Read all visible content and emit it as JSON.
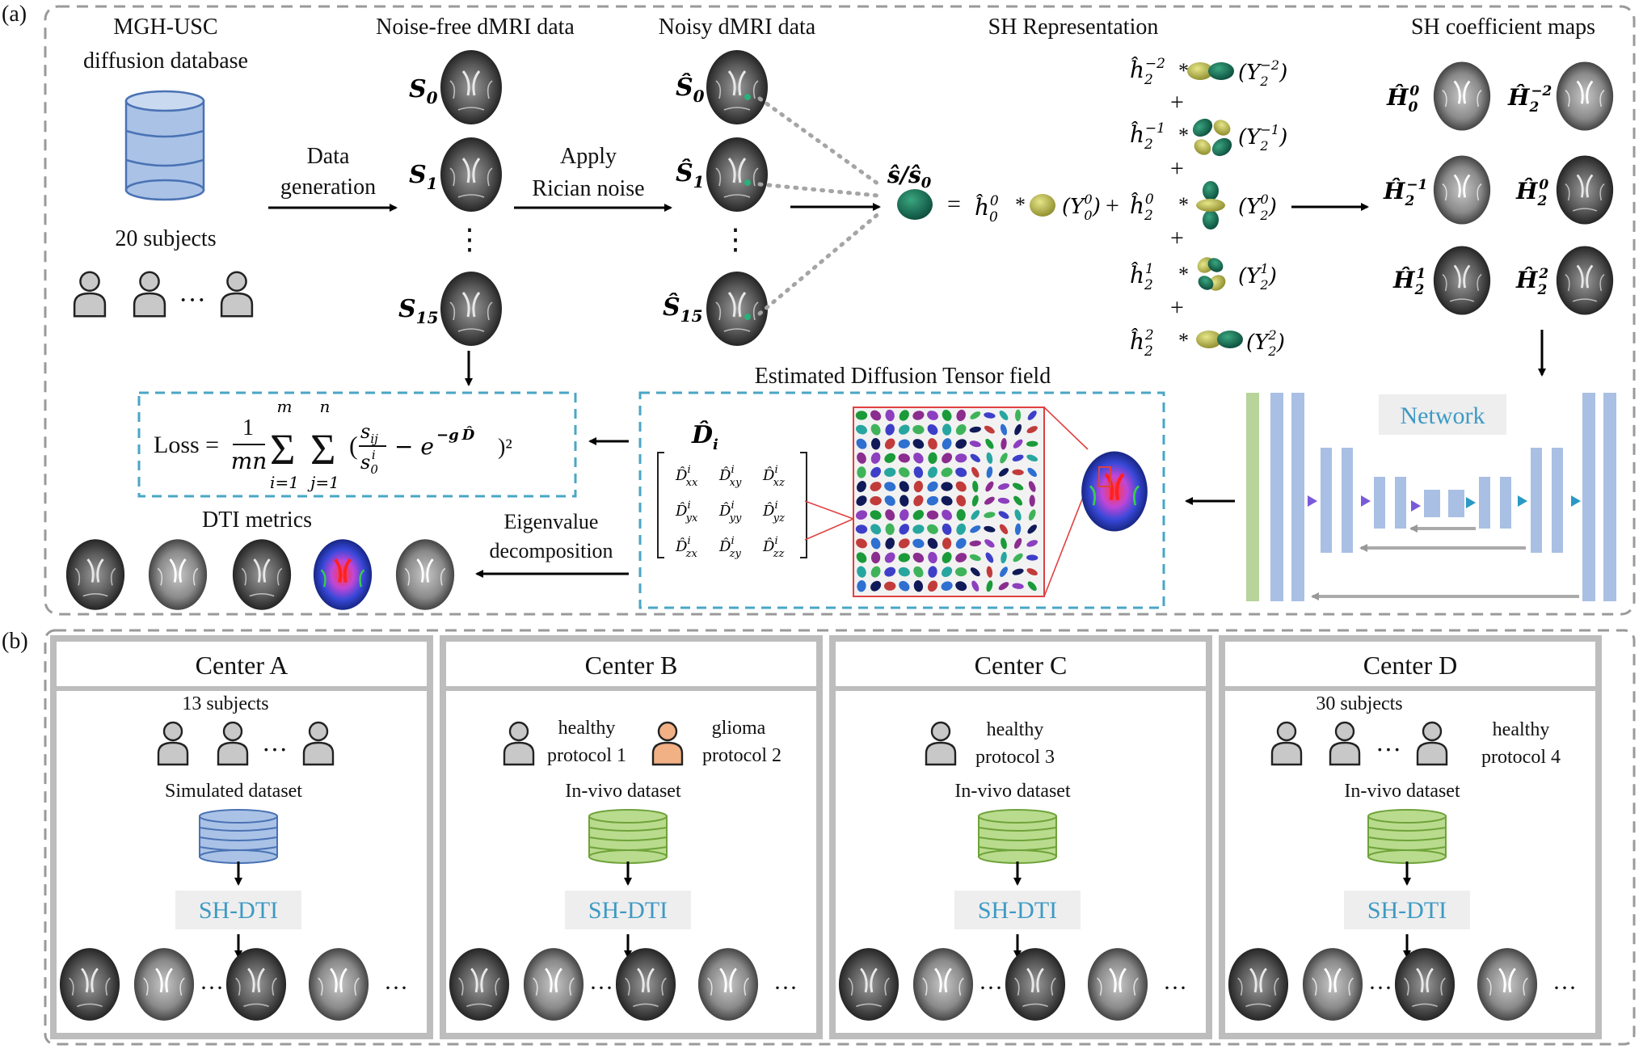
{
  "panel_a": {
    "label": "(a)",
    "database": {
      "title_line1": "MGH-USC",
      "title_line2": "diffusion database",
      "subjects": "20 subjects",
      "dots": "···"
    },
    "data_generation": {
      "line1": "Data",
      "line2": "generation"
    },
    "noise_free": {
      "title": "Noise-free dMRI data",
      "labels": [
        "S",
        "S",
        "S"
      ],
      "subs": [
        "0",
        "1",
        "15"
      ],
      "dots": "⋮"
    },
    "rician": {
      "line1": "Apply",
      "line2": "Rician noise"
    },
    "noisy": {
      "title": "Noisy dMRI data",
      "labels": [
        "Ŝ",
        "Ŝ",
        "Ŝ"
      ],
      "subs": [
        "0",
        "1",
        "15"
      ],
      "dots": "⋮"
    },
    "sh_rep": {
      "title": "SH Representation",
      "signal": "ŝ/ŝ",
      "signal_sub": "0",
      "equals": "=",
      "terms": [
        {
          "coef": "ĥ",
          "sub": "2",
          "sup": "−2",
          "basis": "(Y",
          "bsub": "2",
          "bsup": "−2",
          "close": ")"
        },
        {
          "coef": "ĥ",
          "sub": "2",
          "sup": "−1",
          "basis": "(Y",
          "bsub": "2",
          "bsup": "−1",
          "close": ")"
        },
        {
          "coef": "ĥ",
          "sub": "0",
          "sup": "0",
          "basis": "(Y",
          "bsub": "0",
          "bsup": "0",
          "close": ")"
        },
        {
          "coef": "ĥ",
          "sub": "2",
          "sup": "0",
          "basis": "(Y",
          "bsub": "2",
          "bsup": "0",
          "close": ")"
        },
        {
          "coef": "ĥ",
          "sub": "2",
          "sup": "1",
          "basis": "(Y",
          "bsub": "2",
          "bsup": "1",
          "close": ")"
        },
        {
          "coef": "ĥ",
          "sub": "2",
          "sup": "2",
          "basis": "(Y",
          "bsub": "2",
          "bsup": "2",
          "close": ")"
        }
      ],
      "plus": "+",
      "times": "*"
    },
    "sh_maps": {
      "title": "SH coefficient maps",
      "labels": [
        {
          "base": "Ĥ",
          "sub": "0",
          "sup": "0"
        },
        {
          "base": "Ĥ",
          "sub": "2",
          "sup": "−2"
        },
        {
          "base": "Ĥ",
          "sub": "2",
          "sup": "−1"
        },
        {
          "base": "Ĥ",
          "sub": "2",
          "sup": "0"
        },
        {
          "base": "Ĥ",
          "sub": "2",
          "sup": "1"
        },
        {
          "base": "Ĥ",
          "sub": "2",
          "sup": "2"
        }
      ]
    },
    "network": {
      "label": "Network"
    },
    "tensor_field": {
      "title": "Estimated Diffusion Tensor field",
      "symbol": "D̂",
      "symbol_sub": "i",
      "matrix": [
        [
          "D̂xx",
          "D̂xy",
          "D̂xz"
        ],
        [
          "D̂yx",
          "D̂yy",
          "D̂yz"
        ],
        [
          "D̂zx",
          "D̂zy",
          "D̂zz"
        ]
      ],
      "entries": [
        [
          "xx",
          "xy",
          "xz"
        ],
        [
          "yx",
          "yy",
          "yz"
        ],
        [
          "zx",
          "zy",
          "zz"
        ]
      ],
      "entry_sup": "i",
      "entry_base": "D̂"
    },
    "loss": {
      "lhs": "Loss =",
      "frac_num": "1",
      "frac_den": "mn",
      "sum1_top": "m",
      "sum1_bot": "i=1",
      "sum2_top": "n",
      "sum2_bot": "j=1",
      "term_num": "s",
      "term_num_sub": "ij",
      "term_den": "s",
      "term_den_sub": "0",
      "term_den_sup": "i",
      "minus_exp": "− e",
      "exponent": "−g",
      "exponent_rest": "D̂",
      "squared": ")²",
      "open": "(",
      "sigma": "Σ"
    },
    "eigen": {
      "line1": "Eigenvalue",
      "line2": "decomposition"
    },
    "dti_metrics": {
      "title": "DTI metrics"
    }
  },
  "panel_b": {
    "label": "(b)",
    "centers": [
      {
        "title": "Center A",
        "subjects": "13 subjects",
        "dots": "···",
        "dataset": "Simulated dataset",
        "method": "SH-DTI",
        "more": "···"
      },
      {
        "title": "Center B",
        "healthy": "healthy",
        "protocol1": "protocol 1",
        "glioma": "glioma",
        "protocol2": "protocol  2",
        "dataset": "In-vivo dataset",
        "method": "SH-DTI",
        "more": "···"
      },
      {
        "title": "Center C",
        "healthy": "healthy",
        "protocol": "protocol 3",
        "dataset": "In-vivo dataset",
        "method": "SH-DTI",
        "more": "···"
      },
      {
        "title": "Center D",
        "subjects": "30 subjects",
        "dots": "···",
        "healthy": "healthy",
        "protocol": "protocol 4",
        "dataset": "In-vivo dataset",
        "method": "SH-DTI",
        "more": "···"
      }
    ]
  },
  "colors": {
    "dashed_border": "#9a9a9a",
    "teal_dashed": "#4aa6c4",
    "db_blue": "#a9c2e6",
    "db_green": "#b9db8d",
    "person_gray": "#c8c8c8",
    "person_orange": "#f2b085",
    "network_blue": "#a9bfe4",
    "network_green": "#b7d49a",
    "accent_text": "#3d9ac4",
    "center_frame": "#bdbdbd"
  }
}
